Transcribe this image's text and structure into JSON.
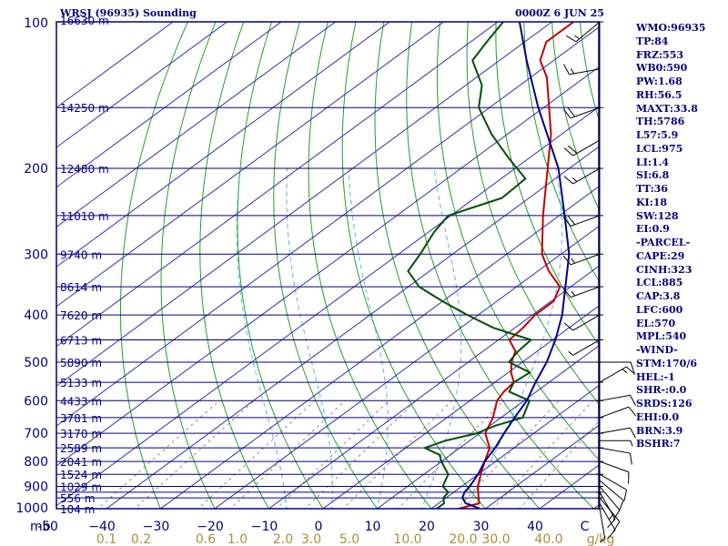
{
  "header": {
    "station": "WRSJ (96935) Sounding",
    "time": "0000Z  6 JUN 25"
  },
  "indices": [
    "WMO:96935",
    "TP:84",
    "FRZ:553",
    "WB0:590",
    "PW:1.68",
    "RH:56.5",
    "MAXT:33.8",
    "TH:5786",
    "L57:5.9",
    "LCL:975",
    "LI:1.4",
    "SI:6.8",
    "TT:36",
    "KI:18",
    "SW:128",
    "EI:0.9",
    "-PARCEL-",
    "CAPE:29",
    "CINH:323",
    "LCL:885",
    "CAP:3.8",
    "LFC:600",
    "EL:570",
    "MPL:540",
    "-WIND-",
    "STM:170/6",
    "HEL:-1",
    "SHR-:0.0",
    "SRDS:126",
    "EHI:0.0",
    "BRN:3.9",
    "BSHR:7"
  ],
  "chart_data": {
    "type": "skew-t",
    "pressure_unit": "mb",
    "temp_unit": "C",
    "mixing_ratio_unit": "g/kg",
    "pressure_range": [
      1000,
      100
    ],
    "temp_range": [
      -50,
      50
    ],
    "pressure_ticks": [
      100,
      200,
      300,
      400,
      500,
      600,
      700,
      800,
      900,
      1000
    ],
    "pressure_levels": [
      100,
      150,
      200,
      250,
      300,
      350,
      400,
      450,
      500,
      550,
      600,
      650,
      700,
      750,
      800,
      850,
      900,
      925,
      950,
      1000
    ],
    "temp_ticks": [
      "-50",
      "−40",
      "−30",
      "−20",
      "−10",
      "0",
      "10",
      "20",
      "30",
      "40",
      "C"
    ],
    "mixing_ratio_ticks": [
      "0.1",
      "0.2",
      "0.6",
      "1.0",
      "2.0",
      "3.0",
      "5.0",
      "10.0",
      "20.0",
      "30.0",
      "40.0"
    ],
    "mixing_ratio_values": [
      0.1,
      0.2,
      0.6,
      1.0,
      2.0,
      3.0,
      5.0,
      10.0,
      20.0,
      30.0,
      40.0
    ],
    "height_labels": [
      {
        "p": 100,
        "label": "16630 m"
      },
      {
        "p": 150,
        "label": "14250 m"
      },
      {
        "p": 200,
        "label": "12480 m"
      },
      {
        "p": 250,
        "label": "11010 m"
      },
      {
        "p": 300,
        "label": "9740 m"
      },
      {
        "p": 350,
        "label": "8614 m"
      },
      {
        "p": 400,
        "label": "7620 m"
      },
      {
        "p": 450,
        "label": "6713 m"
      },
      {
        "p": 500,
        "label": "5890 m"
      },
      {
        "p": 550,
        "label": "5133 m"
      },
      {
        "p": 600,
        "label": "4433 m"
      },
      {
        "p": 650,
        "label": "3781 m"
      },
      {
        "p": 700,
        "label": "3170 m"
      },
      {
        "p": 750,
        "label": "2589 m"
      },
      {
        "p": 800,
        "label": "2041 m"
      },
      {
        "p": 850,
        "label": "1524 m"
      },
      {
        "p": 900,
        "label": "1029 m"
      },
      {
        "p": 950,
        "label": "556 m"
      },
      {
        "p": 1000,
        "label": "104 m"
      }
    ],
    "series": [
      {
        "key": "temperature",
        "color": "#c00000",
        "points": [
          [
            1000,
            25.0
          ],
          [
            975,
            27.5
          ],
          [
            950,
            26.0
          ],
          [
            925,
            24.5
          ],
          [
            900,
            23.0
          ],
          [
            850,
            20.5
          ],
          [
            800,
            18.0
          ],
          [
            750,
            15.5
          ],
          [
            700,
            11.0
          ],
          [
            650,
            8.5
          ],
          [
            600,
            5.0
          ],
          [
            575,
            4.0
          ],
          [
            550,
            3.5
          ],
          [
            525,
            0.5
          ],
          [
            500,
            -2.0
          ],
          [
            475,
            -4.0
          ],
          [
            450,
            -8.0
          ],
          [
            425,
            -8.5
          ],
          [
            400,
            -9.5
          ],
          [
            375,
            -9.5
          ],
          [
            350,
            -12.0
          ],
          [
            325,
            -18.0
          ],
          [
            300,
            -23.5
          ],
          [
            250,
            -33.0
          ],
          [
            200,
            -44.0
          ],
          [
            170,
            -52.0
          ],
          [
            150,
            -59.0
          ],
          [
            130,
            -67.0
          ],
          [
            120,
            -72.5
          ],
          [
            110,
            -76.0
          ],
          [
            100,
            -76.0
          ]
        ]
      },
      {
        "key": "dewpoint",
        "color": "#005000",
        "points": [
          [
            1000,
            21.0
          ],
          [
            975,
            21.0
          ],
          [
            950,
            19.5
          ],
          [
            925,
            19.0
          ],
          [
            900,
            16.5
          ],
          [
            850,
            14.5
          ],
          [
            800,
            10.0
          ],
          [
            775,
            8.0
          ],
          [
            750,
            3.5
          ],
          [
            725,
            5.5
          ],
          [
            700,
            9.5
          ],
          [
            675,
            11.0
          ],
          [
            650,
            14.0
          ],
          [
            600,
            11.0
          ],
          [
            575,
            5.0
          ],
          [
            550,
            3.5
          ],
          [
            525,
            4.0
          ],
          [
            500,
            -2.5
          ],
          [
            475,
            -3.5
          ],
          [
            450,
            -4.0
          ],
          [
            425,
            -14.0
          ],
          [
            400,
            -22.0
          ],
          [
            375,
            -30.0
          ],
          [
            350,
            -38.0
          ],
          [
            325,
            -44.0
          ],
          [
            300,
            -46.0
          ],
          [
            270,
            -49.0
          ],
          [
            250,
            -50.5
          ],
          [
            230,
            -45.0
          ],
          [
            210,
            -45.5
          ],
          [
            190,
            -54.0
          ],
          [
            170,
            -63.0
          ],
          [
            150,
            -72.0
          ],
          [
            135,
            -77.0
          ],
          [
            120,
            -85.0
          ],
          [
            110,
            -87.0
          ],
          [
            100,
            -89.0
          ]
        ]
      },
      {
        "key": "parcel",
        "color": "#00008c",
        "points": [
          [
            1000,
            29.0
          ],
          [
            975,
            25.0
          ],
          [
            950,
            23.0
          ],
          [
            925,
            22.0
          ],
          [
            900,
            21.5
          ],
          [
            850,
            20.0
          ],
          [
            800,
            18.0
          ],
          [
            750,
            16.5
          ],
          [
            700,
            14.5
          ],
          [
            650,
            12.5
          ],
          [
            600,
            10.5
          ],
          [
            550,
            7.5
          ],
          [
            500,
            4.5
          ],
          [
            450,
            0.5
          ],
          [
            400,
            -4.5
          ],
          [
            350,
            -11.0
          ],
          [
            300,
            -18.5
          ],
          [
            250,
            -29.0
          ],
          [
            200,
            -42.0
          ],
          [
            150,
            -61.0
          ],
          [
            120,
            -75.0
          ],
          [
            100,
            -86.0
          ]
        ]
      }
    ],
    "wind_barbs": [
      {
        "p": 1000,
        "dir": 170,
        "spd": 5
      },
      {
        "p": 975,
        "dir": 150,
        "spd": 10
      },
      {
        "p": 950,
        "dir": 140,
        "spd": 10
      },
      {
        "p": 925,
        "dir": 150,
        "spd": 15
      },
      {
        "p": 900,
        "dir": 140,
        "spd": 10
      },
      {
        "p": 875,
        "dir": 130,
        "spd": 10
      },
      {
        "p": 850,
        "dir": 120,
        "spd": 10
      },
      {
        "p": 800,
        "dir": 110,
        "spd": 10
      },
      {
        "p": 750,
        "dir": 100,
        "spd": 10
      },
      {
        "p": 725,
        "dir": 90,
        "spd": 5
      },
      {
        "p": 700,
        "dir": 80,
        "spd": 10
      },
      {
        "p": 650,
        "dir": 70,
        "spd": 10
      },
      {
        "p": 600,
        "dir": 80,
        "spd": 10
      },
      {
        "p": 550,
        "dir": 60,
        "spd": 15
      },
      {
        "p": 500,
        "dir": 90,
        "spd": 10
      },
      {
        "p": 450,
        "dir": 240,
        "spd": 5
      },
      {
        "p": 400,
        "dir": 240,
        "spd": 10
      },
      {
        "p": 350,
        "dir": 250,
        "spd": 15
      },
      {
        "p": 300,
        "dir": 250,
        "spd": 15
      },
      {
        "p": 250,
        "dir": 250,
        "spd": 20
      },
      {
        "p": 200,
        "dir": 240,
        "spd": 15
      },
      {
        "p": 175,
        "dir": 240,
        "spd": 20
      },
      {
        "p": 150,
        "dir": 250,
        "spd": 20
      },
      {
        "p": 125,
        "dir": 260,
        "spd": 15
      },
      {
        "p": 100,
        "dir": 230,
        "spd": 15
      }
    ]
  }
}
